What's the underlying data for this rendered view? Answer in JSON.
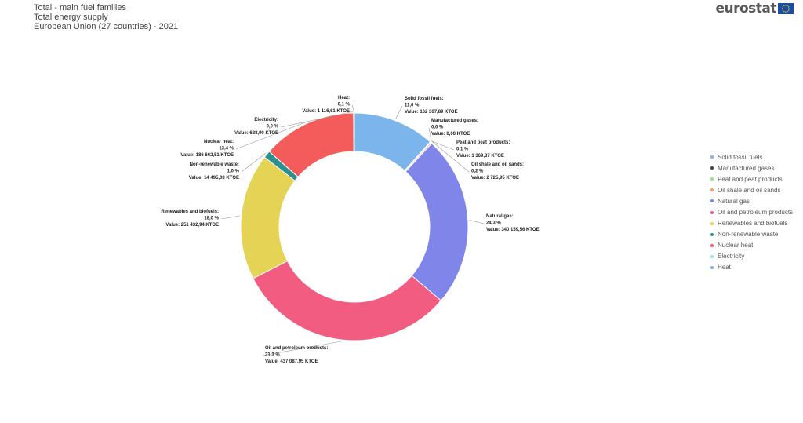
{
  "header": {
    "title_lines": [
      "Total - main fuel families",
      "Total energy supply",
      "European Union (27 countries) - 2021"
    ],
    "brand": "eurostat",
    "flag_icon": "eu-flag-icon"
  },
  "chart_data": {
    "type": "pie",
    "donut": true,
    "unit": "KTOE",
    "legend_position": "right",
    "slices": [
      {
        "name": "Solid fossil fuels",
        "percent": "11,6 %",
        "value": 162307.89,
        "value_label": "Value: 162 307,89 KTOE",
        "color": "#7cb5ec"
      },
      {
        "name": "Manufactured gases",
        "percent": "0,0 %",
        "value": 0.0,
        "value_label": "Value: 0,00 KTOE",
        "color": "#434348"
      },
      {
        "name": "Peat and peat products",
        "percent": "0,1 %",
        "value": 1369.87,
        "value_label": "Value: 1 369,87 KTOE",
        "color": "#90ed7d"
      },
      {
        "name": "Oil shale and oil sands",
        "percent": "0,2 %",
        "value": 2725.95,
        "value_label": "Value: 2 725,95 KTOE",
        "color": "#f7a35c"
      },
      {
        "name": "Natural gas",
        "percent": "24,3 %",
        "value": 340159.56,
        "value_label": "Value: 340 159,56 KTOE",
        "color": "#8085e9"
      },
      {
        "name": "Oil and petroleum products",
        "percent": "31,3 %",
        "value": 437087.95,
        "value_label": "Value: 437 087,95 KTOE",
        "color": "#f15c80"
      },
      {
        "name": "Renewables and biofuels",
        "percent": "18,0 %",
        "value": 251432.94,
        "value_label": "Value: 251 432,94 KTOE",
        "color": "#e4d354"
      },
      {
        "name": "Non-renewable waste",
        "percent": "1,0 %",
        "value": 14495.03,
        "value_label": "Value: 14 495,03 KTOE",
        "color": "#2b908f"
      },
      {
        "name": "Nuclear heat",
        "percent": "13,4 %",
        "value": 186662.51,
        "value_label": "Value: 186 662,51 KTOE",
        "color": "#f45b5b"
      },
      {
        "name": "Electricity",
        "percent": "0,0 %",
        "value": 628.9,
        "value_label": "Value: 628,90 KTOE",
        "color": "#91e8e1"
      },
      {
        "name": "Heat",
        "percent": "0,1 %",
        "value": 1116.61,
        "value_label": "Value: 1 116,61 KTOE",
        "color": "#7cb5ec"
      }
    ]
  }
}
